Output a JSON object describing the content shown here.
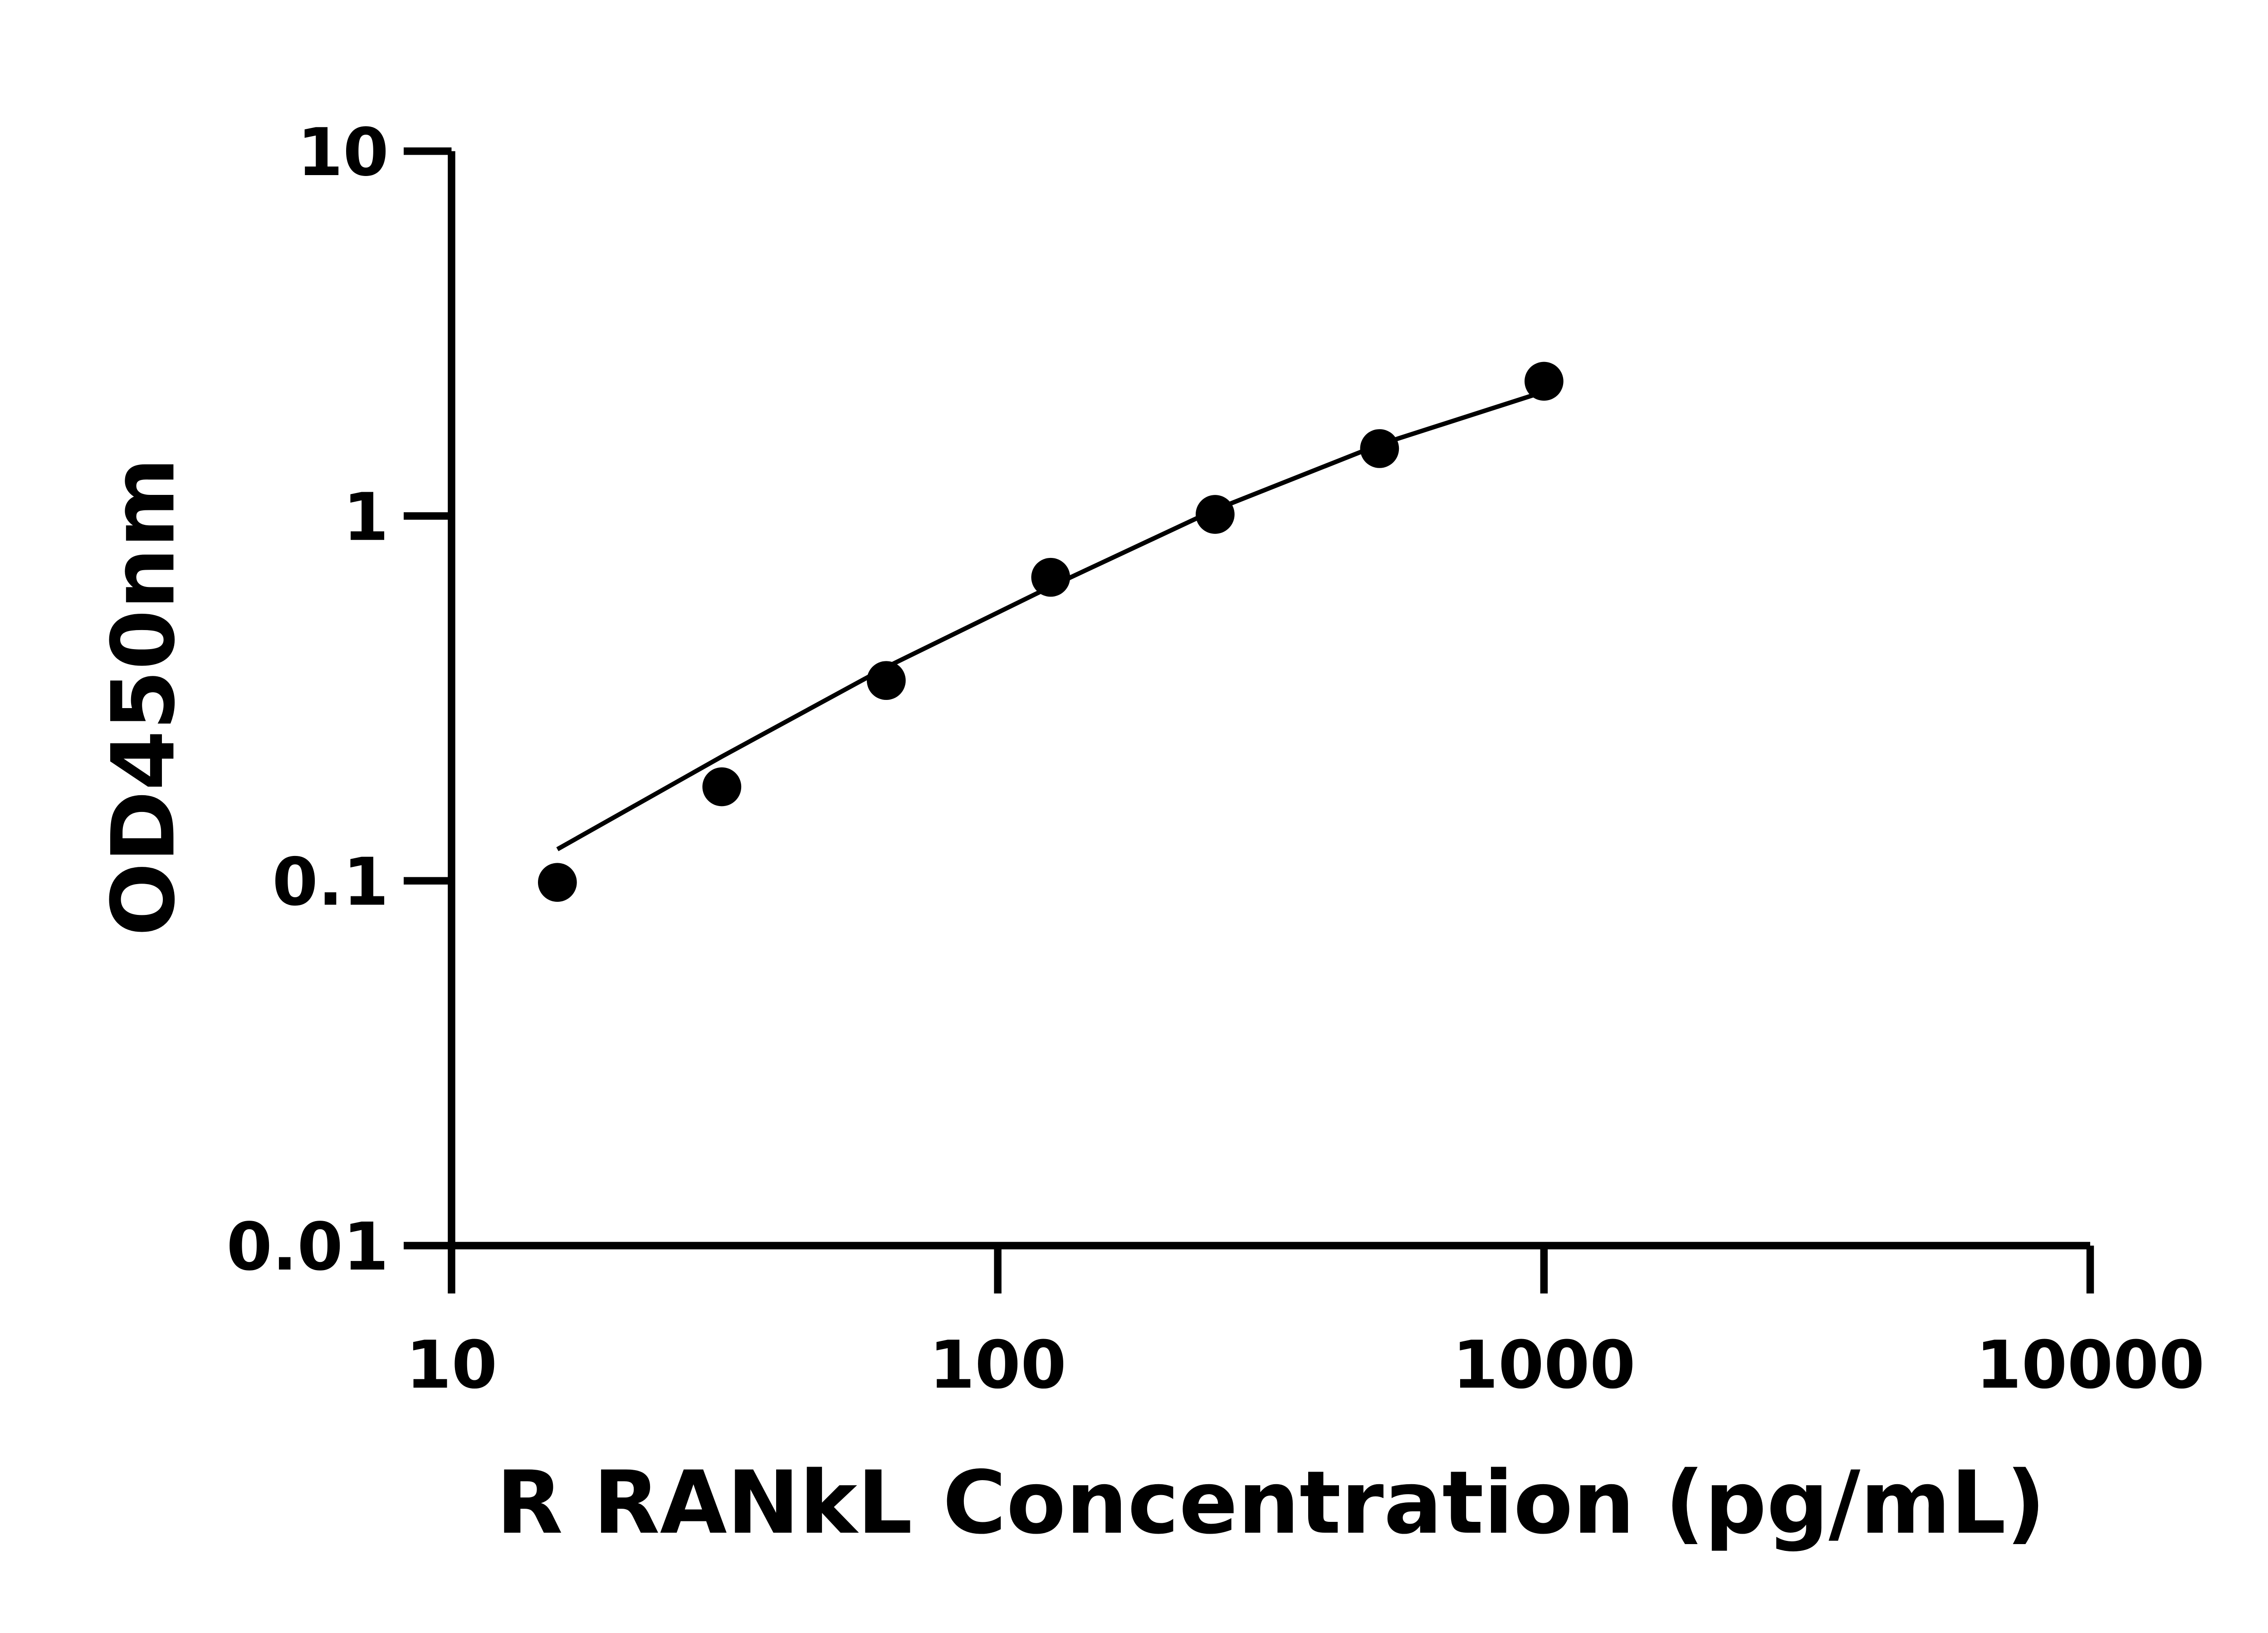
{
  "chart_data": {
    "type": "scatter",
    "title": "",
    "xlabel": "R RANkL Concentration (pg/mL)",
    "ylabel": "OD450nm",
    "xscale": "log",
    "yscale": "log",
    "xlim": [
      10,
      10000
    ],
    "ylim": [
      0.01,
      10
    ],
    "xticks": [
      "10",
      "100",
      "1000",
      "10000"
    ],
    "yticks": [
      "0.01",
      "0.1",
      "1",
      "10"
    ],
    "grid": false,
    "legend": "none",
    "colors": {
      "points": "#000000",
      "curve": "#000000",
      "axes": "#000000"
    },
    "series": [
      {
        "kind": "points",
        "x": [
          15.625,
          31.25,
          62.5,
          125,
          250,
          500,
          1000
        ],
        "y": [
          0.099,
          0.181,
          0.354,
          0.679,
          1.01,
          1.53,
          2.34
        ]
      },
      {
        "kind": "fit-curve",
        "x": [
          15.625,
          31.25,
          62.5,
          125,
          250,
          500,
          1000
        ],
        "y": [
          0.122,
          0.219,
          0.385,
          0.64,
          1.04,
          1.57,
          2.19
        ]
      }
    ]
  }
}
